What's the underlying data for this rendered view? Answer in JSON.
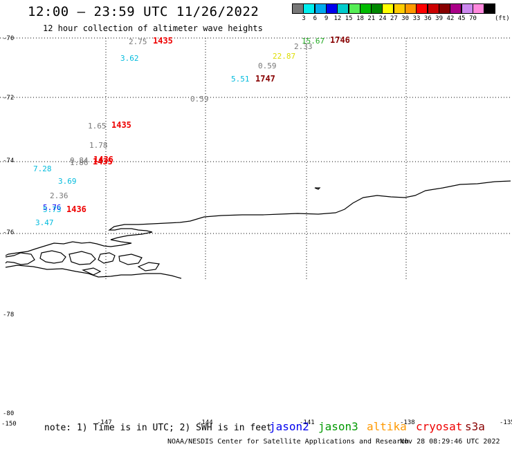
{
  "title": "12:00 – 23:59 UTC 11/26/2022",
  "subtitle": "12 hour collection of altimeter wave heights",
  "legend": {
    "unit": "(ft)",
    "colors": [
      "#777777",
      "#00eeee",
      "#00aaee",
      "#0000ee",
      "#00cccc",
      "#55ee55",
      "#00bb00",
      "#008800",
      "#ffff00",
      "#ffcc00",
      "#ff9900",
      "#ff0000",
      "#cc0000",
      "#880000",
      "#aa0088",
      "#cc88ee",
      "#ff88dd",
      "#000000"
    ],
    "labels": [
      "3",
      "6",
      "9",
      "12",
      "15",
      "18",
      "21",
      "24",
      "27",
      "30",
      "33",
      "36",
      "39",
      "42",
      "45",
      "70"
    ]
  },
  "lat_labels": [
    "-70",
    "-72",
    "-74",
    "-76",
    "-78",
    "-80"
  ],
  "lon_labels": [
    "-150",
    "-147",
    "-144",
    "-141",
    "-138",
    "-135"
  ],
  "wave_heights": [
    {
      "v": "2.75",
      "c": "#777777"
    },
    {
      "v": "3.62",
      "c": "#00bbdd"
    },
    {
      "v": "15.67",
      "c": "#22aa22"
    },
    {
      "v": "2.33",
      "c": "#777777"
    },
    {
      "v": "22.87",
      "c": "#dddd00"
    },
    {
      "v": "0.59",
      "c": "#777777"
    },
    {
      "v": "5.51",
      "c": "#00bbdd"
    },
    {
      "v": "0.59",
      "c": "#777777"
    },
    {
      "v": "1.65",
      "c": "#777777"
    },
    {
      "v": "1.78",
      "c": "#777777"
    },
    {
      "v": "0.84",
      "c": "#777777"
    },
    {
      "v": "1.86",
      "c": "#777777"
    },
    {
      "v": "7.28",
      "c": "#00bbdd"
    },
    {
      "v": "3.69",
      "c": "#00bbdd"
    },
    {
      "v": "2.36",
      "c": "#777777"
    },
    {
      "v": "5.76",
      "c": "#0000ee"
    },
    {
      "v": "5.73",
      "c": "#00bbdd"
    },
    {
      "v": "3.47",
      "c": "#00bbdd"
    }
  ],
  "pass_times": [
    {
      "t": "1435",
      "c": "#ee0000"
    },
    {
      "t": "1746",
      "c": "#880000"
    },
    {
      "t": "1747",
      "c": "#880000"
    },
    {
      "t": "1435",
      "c": "#ee0000"
    },
    {
      "t": "1436",
      "c": "#ee0000"
    },
    {
      "t": "1435",
      "c": "#ee0000"
    },
    {
      "t": "1436",
      "c": "#ee0000"
    }
  ],
  "note": "note: 1) Time is in UTC; 2) SWH is in feet",
  "satellites": [
    {
      "name": "jason2",
      "c": "#0000ee"
    },
    {
      "name": "jason3",
      "c": "#009900"
    },
    {
      "name": "altika",
      "c": "#ff9900"
    },
    {
      "name": "cryosat",
      "c": "#ee0000"
    },
    {
      "name": "s3a",
      "c": "#880000"
    }
  ],
  "credit": "NOAA/NESDIS Center for Satellite Applications and Research",
  "timestamp": "Nov 28 08:29:46 UTC 2022"
}
